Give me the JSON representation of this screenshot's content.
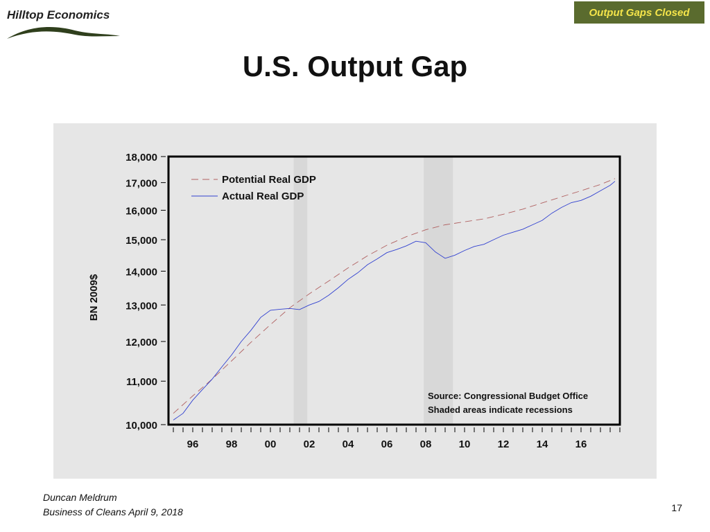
{
  "header": {
    "logo_text": "Hilltop Economics",
    "tag_label": "Output Gaps Closed"
  },
  "slide": {
    "title": "U.S. Output Gap",
    "author": "Duncan Meldrum",
    "subtitle": "Business of Cleans April 9, 2018",
    "page_number": "17"
  },
  "colors": {
    "tag_bg": "#5a6b2e",
    "tag_text": "#f4e44a",
    "potential": "#b06060",
    "actual": "#3040d0",
    "recession": "#d8d8d8"
  },
  "chart_data": {
    "type": "line",
    "title": "",
    "ylabel": "BN 2009$",
    "xlabel": "",
    "y_scale": "log",
    "ylim": [
      10000,
      18000
    ],
    "xlim": [
      1994.75,
      2018.0
    ],
    "yticks": [
      10000,
      11000,
      12000,
      13000,
      14000,
      15000,
      16000,
      17000,
      18000
    ],
    "ytick_labels": [
      "10,000",
      "11,000",
      "12,000",
      "13,000",
      "14,000",
      "15,000",
      "16,000",
      "17,000",
      "18,000"
    ],
    "xticks": [
      1996,
      1998,
      2000,
      2002,
      2004,
      2006,
      2008,
      2010,
      2012,
      2014,
      2016
    ],
    "xtick_labels": [
      "96",
      "98",
      "00",
      "02",
      "04",
      "06",
      "08",
      "10",
      "12",
      14,
      "16"
    ],
    "legend_position": "top-left",
    "recessions": [
      [
        2001.2,
        2001.9
      ],
      [
        2007.9,
        2009.4
      ]
    ],
    "annotations": [
      "Source: Congressional Budget Office",
      "Shaded areas indicate recessions"
    ],
    "series": [
      {
        "name": "Potential Real GDP",
        "style": "dashed",
        "x": [
          1995.0,
          1996.0,
          1997.0,
          1998.0,
          1999.0,
          2000.0,
          2001.0,
          2002.0,
          2003.0,
          2004.0,
          2005.0,
          2006.0,
          2007.0,
          2008.0,
          2009.0,
          2010.0,
          2011.0,
          2012.0,
          2013.0,
          2014.0,
          2015.0,
          2016.0,
          2017.0,
          2017.75
        ],
        "y": [
          10250,
          10650,
          11050,
          11500,
          11980,
          12450,
          12920,
          13320,
          13700,
          14100,
          14480,
          14820,
          15100,
          15330,
          15500,
          15600,
          15700,
          15860,
          16040,
          16260,
          16480,
          16700,
          16930,
          17150
        ]
      },
      {
        "name": "Actual Real GDP",
        "style": "solid",
        "x": [
          1995.0,
          1995.5,
          1996.0,
          1996.5,
          1997.0,
          1997.5,
          1998.0,
          1998.5,
          1999.0,
          1999.5,
          2000.0,
          2000.5,
          2001.0,
          2001.5,
          2002.0,
          2002.5,
          2003.0,
          2003.5,
          2004.0,
          2004.5,
          2005.0,
          2005.5,
          2006.0,
          2006.5,
          2007.0,
          2007.5,
          2008.0,
          2008.5,
          2009.0,
          2009.5,
          2010.0,
          2010.5,
          2011.0,
          2011.5,
          2012.0,
          2012.5,
          2013.0,
          2013.5,
          2014.0,
          2014.5,
          2015.0,
          2015.5,
          2016.0,
          2016.5,
          2017.0,
          2017.5,
          2017.75
        ],
        "y": [
          10100,
          10250,
          10550,
          10800,
          11050,
          11350,
          11650,
          12000,
          12300,
          12650,
          12850,
          12880,
          12900,
          12870,
          13000,
          13100,
          13280,
          13500,
          13750,
          13950,
          14200,
          14380,
          14580,
          14680,
          14800,
          14950,
          14900,
          14600,
          14400,
          14500,
          14650,
          14780,
          14850,
          15000,
          15150,
          15250,
          15350,
          15500,
          15650,
          15900,
          16100,
          16270,
          16350,
          16500,
          16700,
          16900,
          17050
        ]
      }
    ]
  }
}
